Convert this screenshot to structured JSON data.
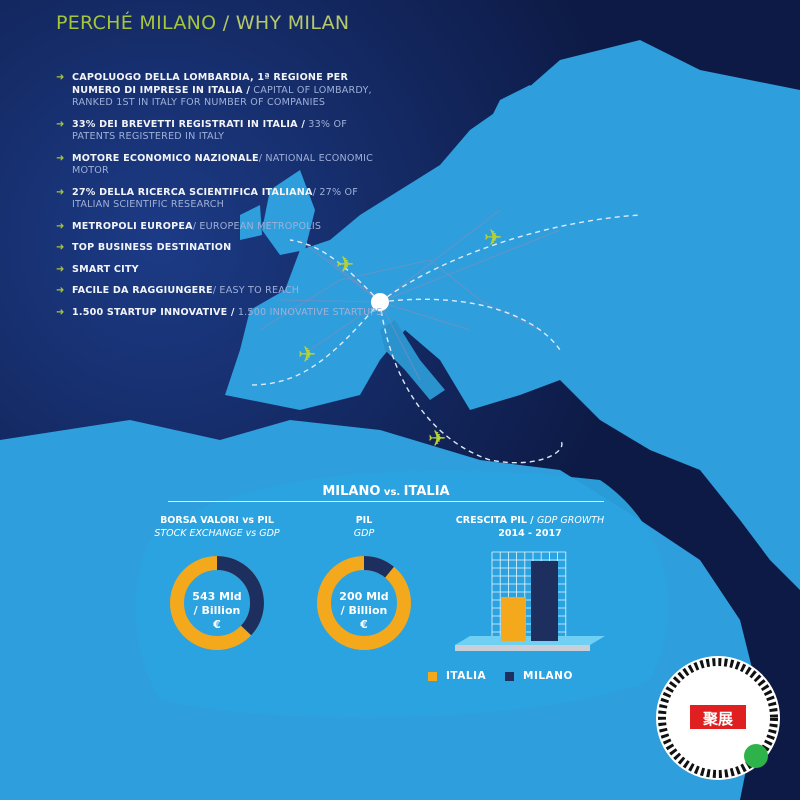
{
  "header": {
    "title_it": "PERCHÉ MILANO",
    "title_sep": " / ",
    "title_en": "WHY MILAN"
  },
  "points": [
    {
      "it": "CAPOLUOGO DELLA LOMBARDIA, 1ª REGIONE PER NUMERO DI IMPRESE IN ITALIA /",
      "en": " CAPITAL OF LOMBARDY, RANKED 1ST IN ITALY FOR NUMBER OF COMPANIES"
    },
    {
      "it": "33% DEI BREVETTI REGISTRATI IN ITALIA /",
      "en": " 33% OF PATENTS REGISTERED IN ITALY"
    },
    {
      "it": "MOTORE ECONOMICO NAZIONALE",
      "en": "/ NATIONAL ECONOMIC MOTOR"
    },
    {
      "it": "27% DELLA RICERCA SCIENTIFICA ITALIANA",
      "en": "/ 27% OF ITALIAN SCIENTIFIC RESEARCH"
    },
    {
      "it": "METROPOLI EUROPEA",
      "en": "/ EUROPEAN METROPOLIS"
    },
    {
      "it": "TOP BUSINESS DESTINATION",
      "en": ""
    },
    {
      "it": "SMART CITY",
      "en": ""
    },
    {
      "it": "FACILE DA RAGGIUNGERE",
      "en": "/ EASY TO REACH"
    },
    {
      "it": "1.500 STARTUP INNOVATIVE /",
      "en": " 1.500 INNOVATIVE STARTUPS"
    }
  ],
  "section": {
    "title": "MILANO",
    "vs": " vs. ",
    "title2": "ITALIA"
  },
  "chart_data": [
    {
      "type": "pie",
      "title_it": "BORSA VALORI vs PIL",
      "title_en": "STOCK EXCHANGE vs GDP",
      "center_label": [
        "543 Mld",
        "/ Billion",
        "€"
      ],
      "milano_share_pct": 37
    },
    {
      "type": "pie",
      "title_it": "PIL",
      "title_en": "GDP",
      "center_label": [
        "200 Mld",
        "/ Billion",
        "€"
      ],
      "milano_share_pct": 11
    },
    {
      "type": "bar",
      "title_it": "CRESCITA PIL / ",
      "title_en": "GDP GROWTH",
      "period": "2014 - 2017",
      "categories": [
        "ITALIA",
        "MILANO"
      ],
      "relative_heights": [
        0.55,
        1.0
      ]
    }
  ],
  "legend": [
    {
      "label": "ITALIA",
      "color": "#f4a81c"
    },
    {
      "label": "MILANO",
      "color": "#1d2f5e"
    }
  ],
  "colors": {
    "background": "#0d1a45",
    "land": "#2e9fdc",
    "accent": "#a6c53a",
    "italia": "#f4a81c",
    "milano": "#1d2f5e"
  },
  "badge": {
    "text": "聚展"
  }
}
